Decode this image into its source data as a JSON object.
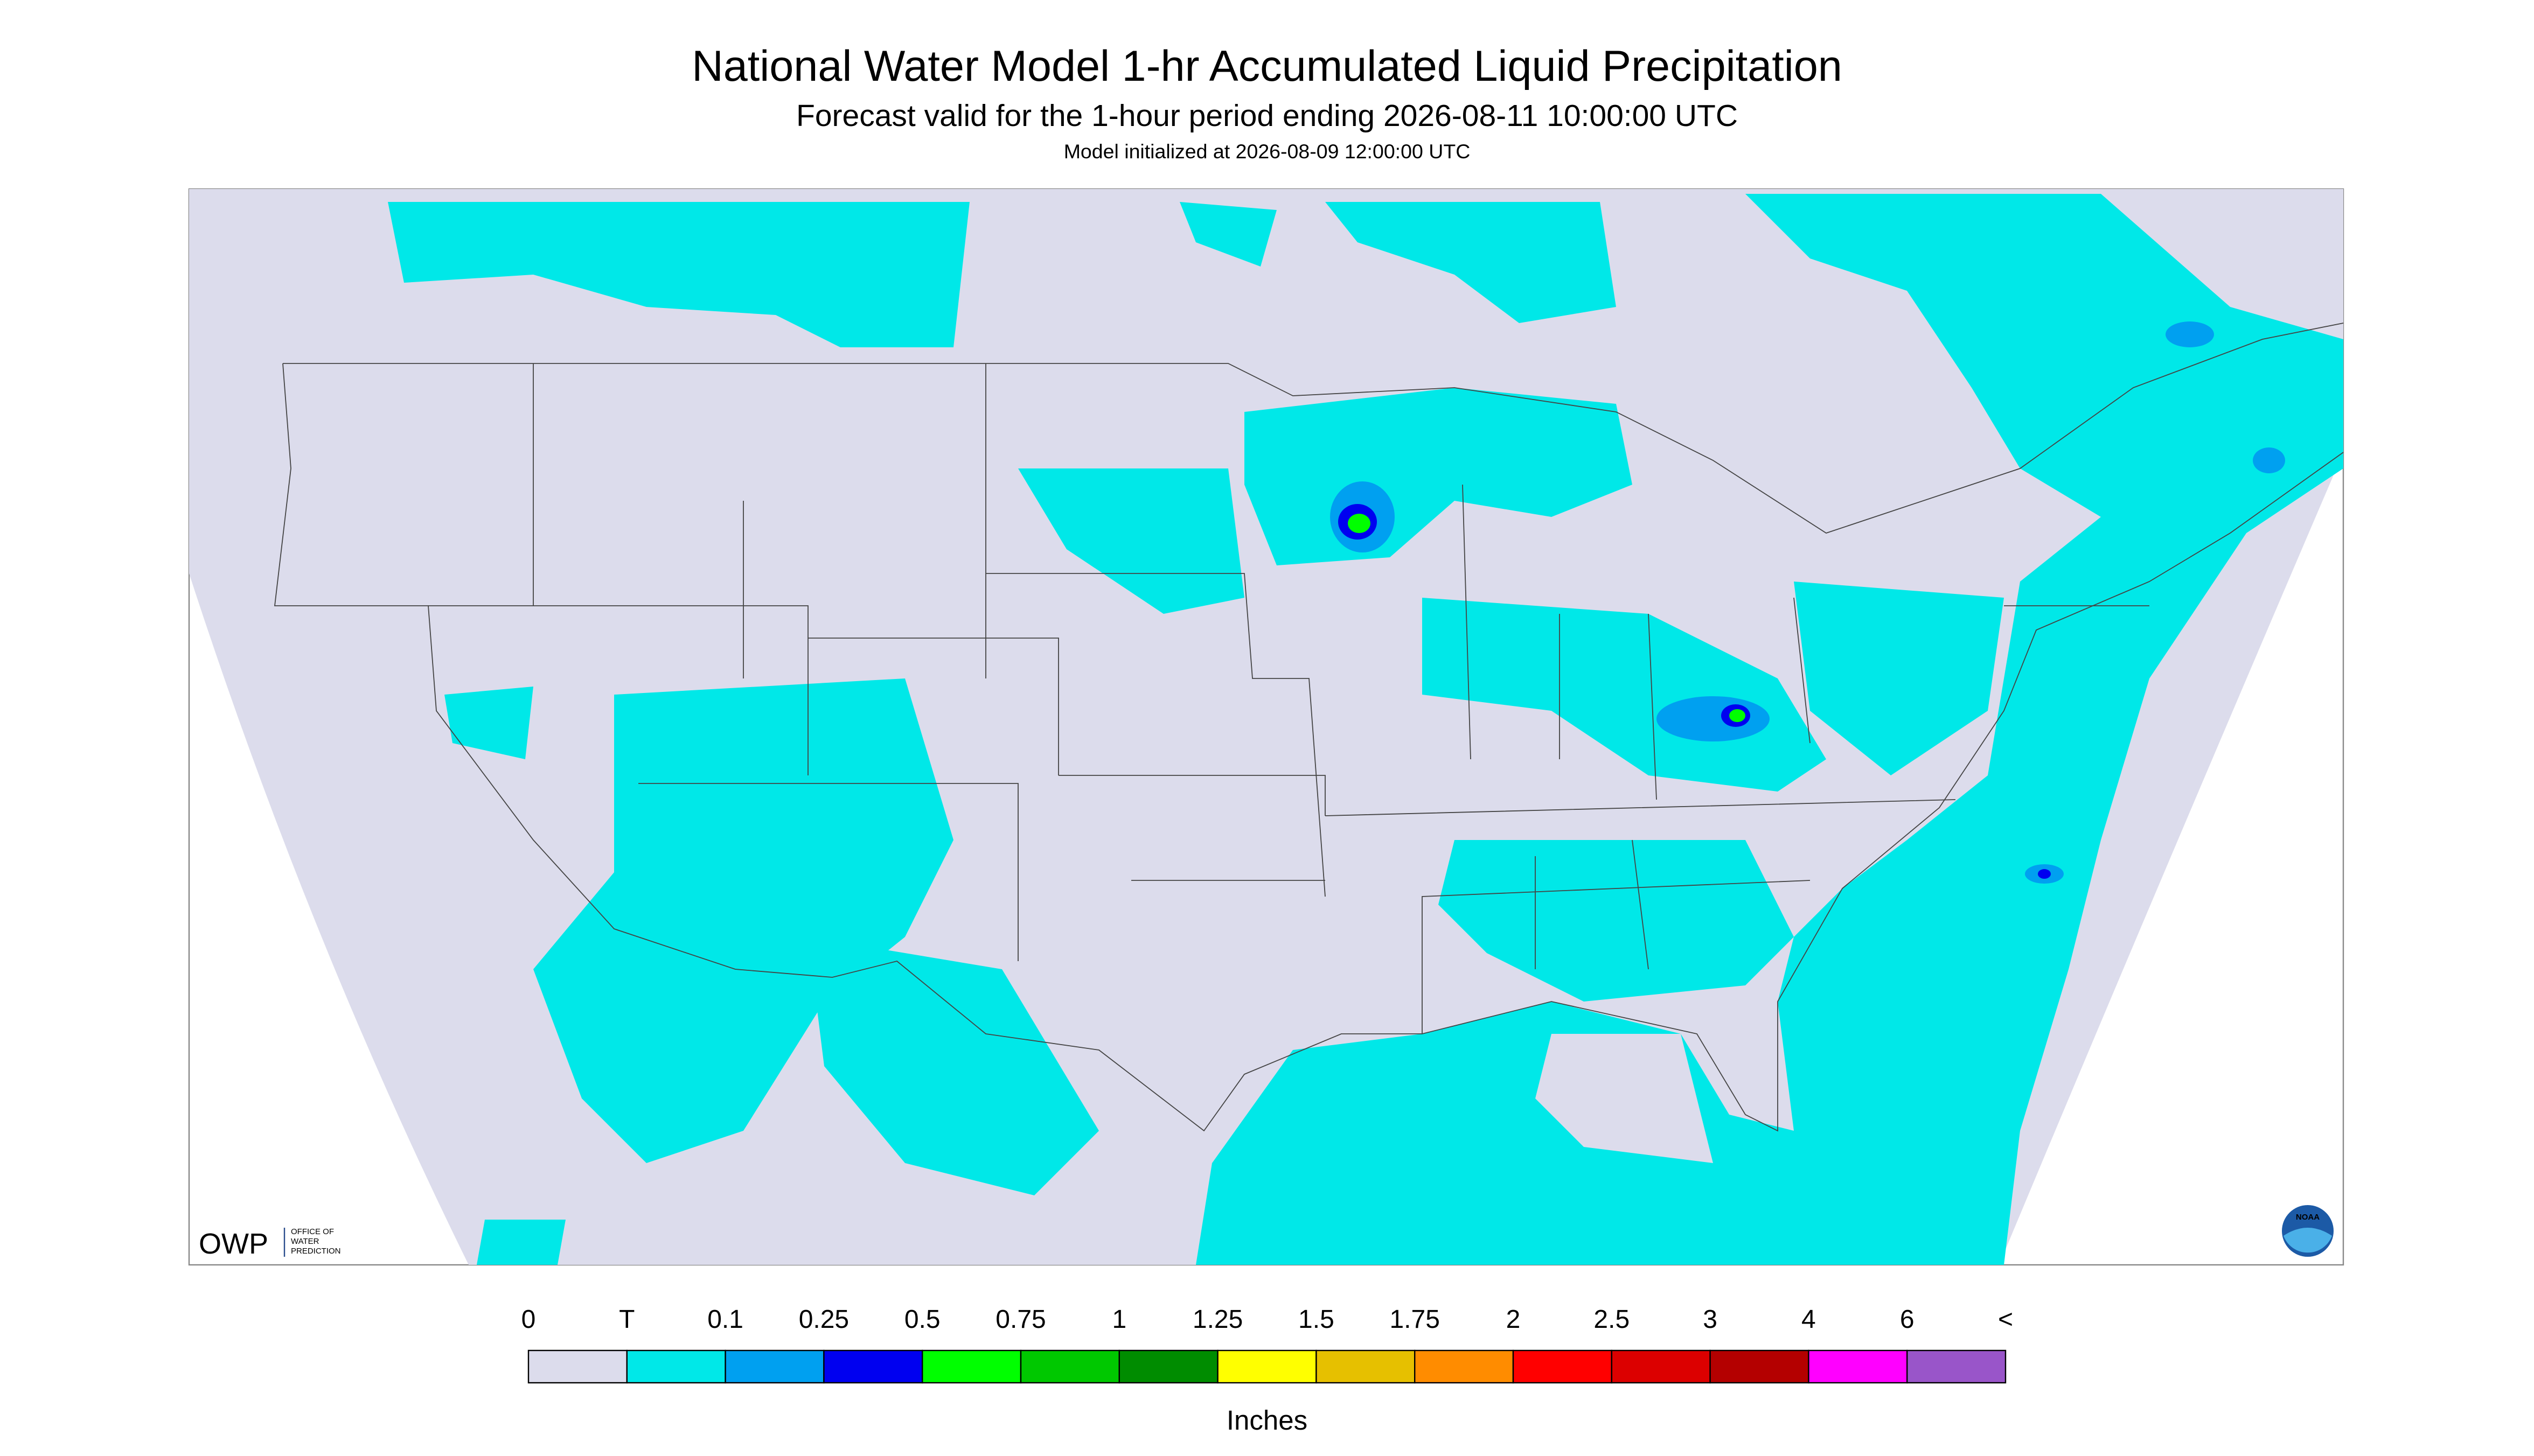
{
  "header": {
    "title": "National Water Model 1-hr Accumulated Liquid Precipitation",
    "subtitle": "Forecast valid for the 1-hour period ending 2026-08-11 10:00:00 UTC",
    "note": "Model initialized at 2026-08-09 12:00:00 UTC"
  },
  "legend": {
    "labels": [
      "0",
      "T",
      "0.1",
      "0.25",
      "0.5",
      "0.75",
      "1",
      "1.25",
      "1.5",
      "1.75",
      "2",
      "2.5",
      "3",
      "4",
      "6",
      "<"
    ],
    "colors": [
      "#dcdcec",
      "#00e8e8",
      "#00a0f0",
      "#0000f0",
      "#00ff00",
      "#00c800",
      "#008c00",
      "#ffff00",
      "#e6c000",
      "#ff8c00",
      "#ff0000",
      "#dc0000",
      "#b40000",
      "#ff00ff",
      "#9955c9"
    ],
    "unit": "Inches"
  },
  "logos": {
    "owp": "OWP",
    "owp_lines": [
      "OFFICE OF",
      "WATER",
      "PREDICTION"
    ],
    "noaa": "NOAA"
  }
}
